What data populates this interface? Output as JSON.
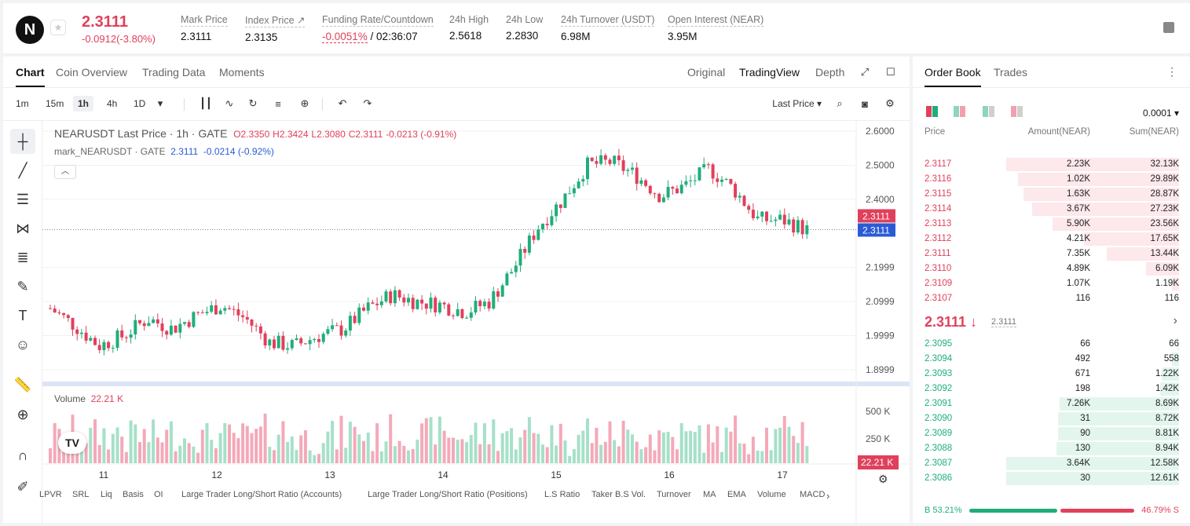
{
  "header": {
    "logo": "N",
    "price": "2.3111",
    "change": "-0.0912(-3.80%)",
    "stats": [
      {
        "label": "Mark Price",
        "value": "2.3111"
      },
      {
        "label": "Index Price ↗",
        "value": "2.3135"
      },
      {
        "label": "Funding Rate/Countdown",
        "value_red": "-0.0051%",
        "value": " / 02:36:07"
      },
      {
        "label": "24h High",
        "value": "2.5618"
      },
      {
        "label": "24h Low",
        "value": "2.2830"
      },
      {
        "label": "24h Turnover (USDT)",
        "value": "6.98M"
      },
      {
        "label": "Open Interest (NEAR)",
        "value": "3.95M"
      }
    ]
  },
  "chart_panel": {
    "tabs": [
      "Chart",
      "Coin Overview",
      "Trading Data",
      "Moments"
    ],
    "views": [
      "Original",
      "TradingView",
      "Depth"
    ],
    "timeframes": [
      "1m",
      "15m",
      "1h",
      "4h",
      "1D"
    ],
    "price_type": "Last Price ▾",
    "legend_main": {
      "symbol": "NEARUSDT Last Price · 1h · GATE",
      "o": "O2.3350",
      "h": "H2.3424",
      "l": "L2.3080",
      "c": "C2.3111",
      "chg": "-0.0213 (-0.91%)"
    },
    "legend_mark": {
      "symbol": "mark_NEARUSDT · GATE",
      "v1": "2.3111",
      "v2": "-0.0214",
      "v3": "(-0.92%)"
    },
    "volume_label": "Volume",
    "volume_value": "22.21 K",
    "indicators": [
      "LPVR",
      "SRL",
      "Liq",
      "Basis",
      "OI",
      "Large Trader Long/Short Ratio (Accounts)",
      "Large Trader Long/Short Ratio (Positions)",
      "L.S Ratio",
      "Taker B.S Vol.",
      "Turnover",
      "MA",
      "EMA",
      "Volume",
      "MACD"
    ]
  },
  "chart_data": {
    "type": "candlestick",
    "symbol": "NEARUSDT",
    "price_ticks": [
      "2.6000",
      "2.5000",
      "2.4000",
      "2.1999",
      "2.0999",
      "1.9999",
      "1.8999"
    ],
    "price_tick_values": [
      2.6,
      2.5,
      2.4,
      2.2,
      2.1,
      2.0,
      1.9
    ],
    "ylim": [
      1.87,
      2.63
    ],
    "last_price": "2.3111",
    "mark_price": "2.3111",
    "volume_ticks": [
      "500 K",
      "250 K"
    ],
    "volume_badge": "22.21 K",
    "x_ticks": [
      "11",
      "12",
      "13",
      "14",
      "15",
      "16",
      "17"
    ],
    "close_trend": [
      2.08,
      2.03,
      1.97,
      2.0,
      2.05,
      2.02,
      2.06,
      2.09,
      2.05,
      1.98,
      1.97,
      2.0,
      2.02,
      2.08,
      2.12,
      2.1,
      2.09,
      2.07,
      2.1,
      2.2,
      2.32,
      2.4,
      2.5,
      2.51,
      2.47,
      2.41,
      2.44,
      2.49,
      2.43,
      2.34,
      2.34,
      2.31
    ]
  },
  "orderbook": {
    "tabs": [
      "Order Book",
      "Trades"
    ],
    "precision": "0.0001 ▾",
    "columns": [
      "Price",
      "Amount(NEAR)",
      "Sum(NEAR)"
    ],
    "asks": [
      {
        "price": "2.3117",
        "amount": "2.23K",
        "sum": "32.13K",
        "depth": 1.0
      },
      {
        "price": "2.3116",
        "amount": "1.02K",
        "sum": "29.89K",
        "depth": 0.93
      },
      {
        "price": "2.3115",
        "amount": "1.63K",
        "sum": "28.87K",
        "depth": 0.9
      },
      {
        "price": "2.3114",
        "amount": "3.67K",
        "sum": "27.23K",
        "depth": 0.85
      },
      {
        "price": "2.3113",
        "amount": "5.90K",
        "sum": "23.56K",
        "depth": 0.73
      },
      {
        "price": "2.3112",
        "amount": "4.21K",
        "sum": "17.65K",
        "depth": 0.55
      },
      {
        "price": "2.3111",
        "amount": "7.35K",
        "sum": "13.44K",
        "depth": 0.42
      },
      {
        "price": "2.3110",
        "amount": "4.89K",
        "sum": "6.09K",
        "depth": 0.19
      },
      {
        "price": "2.3109",
        "amount": "1.07K",
        "sum": "1.19K",
        "depth": 0.04
      },
      {
        "price": "2.3107",
        "amount": "116",
        "sum": "116",
        "depth": 0.0
      }
    ],
    "mid_price": "2.3111 ↓",
    "mid_mark": "2.3111",
    "bids": [
      {
        "price": "2.3095",
        "amount": "66",
        "sum": "66",
        "depth": 0.01
      },
      {
        "price": "2.3094",
        "amount": "492",
        "sum": "558",
        "depth": 0.04
      },
      {
        "price": "2.3093",
        "amount": "671",
        "sum": "1.22K",
        "depth": 0.1
      },
      {
        "price": "2.3092",
        "amount": "198",
        "sum": "1.42K",
        "depth": 0.11
      },
      {
        "price": "2.3091",
        "amount": "7.26K",
        "sum": "8.69K",
        "depth": 0.69
      },
      {
        "price": "2.3090",
        "amount": "31",
        "sum": "8.72K",
        "depth": 0.7
      },
      {
        "price": "2.3089",
        "amount": "90",
        "sum": "8.81K",
        "depth": 0.7
      },
      {
        "price": "2.3088",
        "amount": "130",
        "sum": "8.94K",
        "depth": 0.71
      },
      {
        "price": "2.3087",
        "amount": "3.64K",
        "sum": "12.58K",
        "depth": 1.0
      },
      {
        "price": "2.3086",
        "amount": "30",
        "sum": "12.61K",
        "depth": 1.0
      }
    ],
    "buy_ratio": "B 53.21%",
    "sell_ratio": "46.79% S",
    "buy_fraction": 0.5321
  },
  "colors": {
    "up": "#1fae7a",
    "down": "#e0405c",
    "mark": "#2a5bd7"
  }
}
